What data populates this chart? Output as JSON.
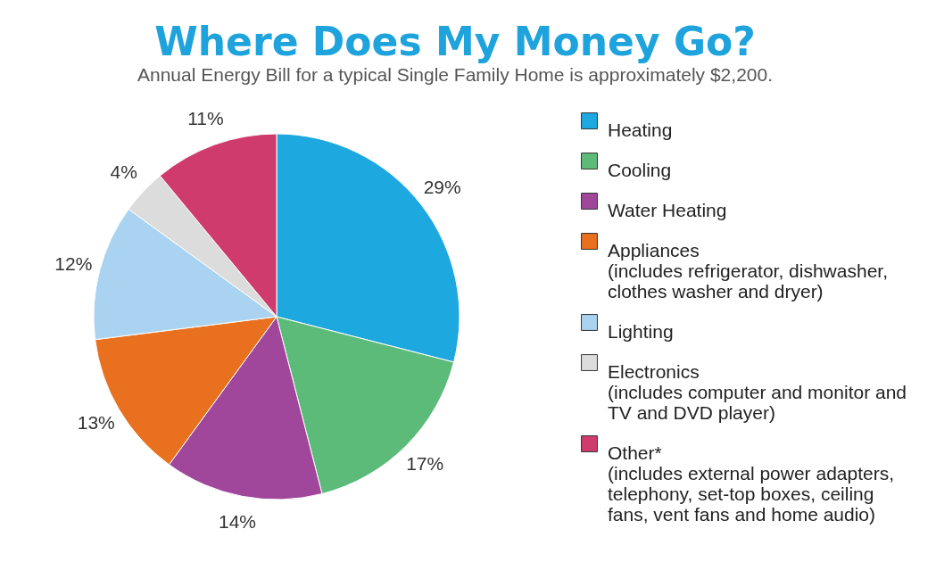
{
  "chart_data": {
    "type": "pie",
    "title": "Where Does My Money Go?",
    "subtitle": "Annual Energy Bill for a typical Single Family Home is approximately $2,200.",
    "categories": [
      "Heating",
      "Cooling",
      "Water Heating",
      "Appliances",
      "Lighting",
      "Electronics",
      "Other*"
    ],
    "values": [
      29,
      17,
      14,
      13,
      12,
      4,
      11
    ],
    "value_labels": [
      "29%",
      "17%",
      "14%",
      "13%",
      "12%",
      "4%",
      "11%"
    ],
    "colors": [
      "#1ea8e0",
      "#5dbb7a",
      "#a0479c",
      "#e8701e",
      "#a9d3f0",
      "#dcdcdc",
      "#cf3b6c"
    ],
    "legend": "right",
    "annotations": [
      {
        "text": "(includes refrigerator, dishwasher, clothes washer and dryer)",
        "x": "Appliances"
      },
      {
        "text": "(includes computer and monitor and TV and DVD player)",
        "x": "Electronics"
      },
      {
        "text": "(includes external power adapters, telephony, set-top boxes, ceiling fans, vent fans and home audio)",
        "x": "Other*"
      }
    ]
  }
}
